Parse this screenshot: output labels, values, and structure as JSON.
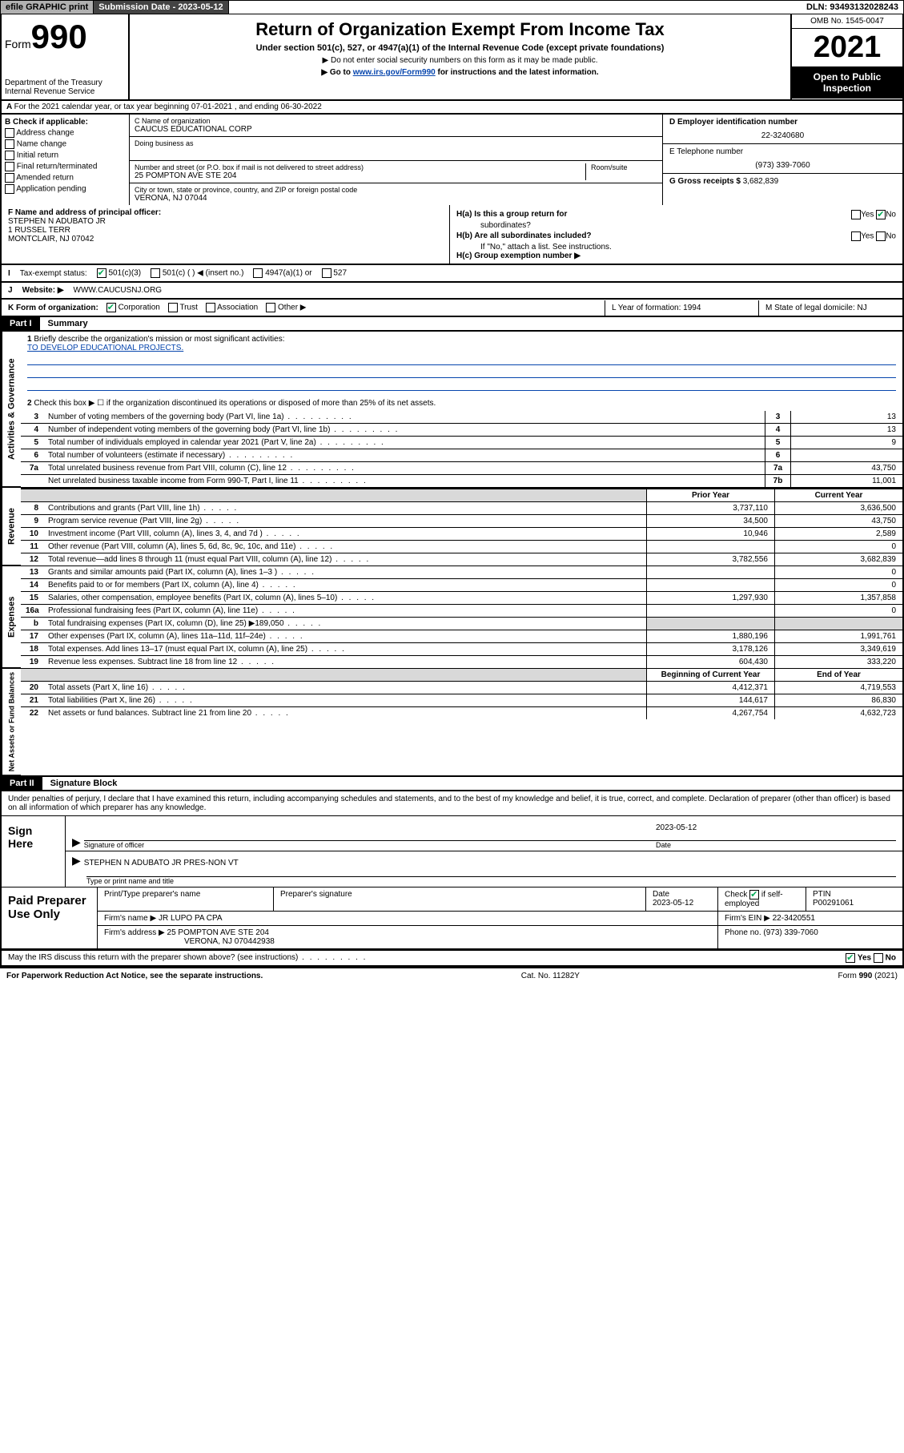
{
  "top": {
    "efile": "efile GRAPHIC print",
    "sub_lbl": "Submission Date - 2023-05-12",
    "dln": "DLN: 93493132028243"
  },
  "header": {
    "form": "Form",
    "num": "990",
    "dept": "Department of the Treasury",
    "irs": "Internal Revenue Service",
    "title": "Return of Organization Exempt From Income Tax",
    "sub": "Under section 501(c), 527, or 4947(a)(1) of the Internal Revenue Code (except private foundations)",
    "n1": "▶ Do not enter social security numbers on this form as it may be made public.",
    "n2_a": "▶ Go to ",
    "n2_link": "www.irs.gov/Form990",
    "n2_b": " for instructions and the latest information.",
    "omb": "OMB No. 1545-0047",
    "year": "2021",
    "open": "Open to Public Inspection"
  },
  "rowA": "For the 2021 calendar year, or tax year beginning 07-01-2021   , and ending 06-30-2022",
  "B": {
    "hdr": "B Check if applicable:",
    "o1": "Address change",
    "o2": "Name change",
    "o3": "Initial return",
    "o4": "Final return/terminated",
    "o5": "Amended return",
    "o6": "Application pending"
  },
  "C": {
    "name_lbl": "C Name of organization",
    "name": "CAUCUS EDUCATIONAL CORP",
    "dba_lbl": "Doing business as",
    "addr_lbl": "Number and street (or P.O. box if mail is not delivered to street address)",
    "room_lbl": "Room/suite",
    "addr": "25 POMPTON AVE STE 204",
    "city_lbl": "City or town, state or province, country, and ZIP or foreign postal code",
    "city": "VERONA, NJ  07044"
  },
  "D": {
    "ein_lbl": "D Employer identification number",
    "ein": "22-3240680",
    "tel_lbl": "E Telephone number",
    "tel": "(973) 339-7060",
    "gross_lbl": "G Gross receipts $ ",
    "gross": "3,682,839"
  },
  "F": {
    "lbl": "F  Name and address of principal officer:",
    "l1": "STEPHEN N ADUBATO JR",
    "l2": "1 RUSSEL TERR",
    "l3": "MONTCLAIR, NJ  07042"
  },
  "H": {
    "a": "H(a)  Is this a group return for",
    "a2": "subordinates?",
    "b": "H(b)  Are all subordinates included?",
    "note": "If \"No,\" attach a list. See instructions.",
    "c": "H(c)  Group exemption number ▶",
    "yes": "Yes",
    "no": "No"
  },
  "I": {
    "lbl": "Tax-exempt status:",
    "o1": "501(c)(3)",
    "o2": "501(c) (  ) ◀ (insert no.)",
    "o3": "4947(a)(1) or",
    "o4": "527"
  },
  "J": {
    "lbl": "Website: ▶",
    "val": "WWW.CAUCUSNJ.ORG"
  },
  "K": {
    "lbl": "K Form of organization:",
    "o1": "Corporation",
    "o2": "Trust",
    "o3": "Association",
    "o4": "Other ▶",
    "L": "L Year of formation: 1994",
    "M": "M State of legal domicile: NJ"
  },
  "part1": {
    "hdr": "Part I",
    "title": "Summary"
  },
  "summary": {
    "q1": "Briefly describe the organization's mission or most significant activities:",
    "mission": "TO DEVELOP EDUCATIONAL PROJECTS.",
    "q2": "Check this box ▶ ☐  if the organization discontinued its operations or disposed of more than 25% of its net assets.",
    "rows_gov": [
      {
        "n": "3",
        "lbl": "Number of voting members of the governing body (Part VI, line 1a)",
        "id": "3",
        "v": "13"
      },
      {
        "n": "4",
        "lbl": "Number of independent voting members of the governing body (Part VI, line 1b)",
        "id": "4",
        "v": "13"
      },
      {
        "n": "5",
        "lbl": "Total number of individuals employed in calendar year 2021 (Part V, line 2a)",
        "id": "5",
        "v": "9"
      },
      {
        "n": "6",
        "lbl": "Total number of volunteers (estimate if necessary)",
        "id": "6",
        "v": ""
      },
      {
        "n": "7a",
        "lbl": "Total unrelated business revenue from Part VIII, column (C), line 12",
        "id": "7a",
        "v": "43,750"
      },
      {
        "n": "",
        "lbl": "Net unrelated business taxable income from Form 990-T, Part I, line 11",
        "id": "7b",
        "v": "11,001"
      }
    ],
    "py_hdr": "Prior Year",
    "cy_hdr": "Current Year",
    "rows_rev": [
      {
        "n": "8",
        "lbl": "Contributions and grants (Part VIII, line 1h)",
        "py": "3,737,110",
        "cy": "3,636,500"
      },
      {
        "n": "9",
        "lbl": "Program service revenue (Part VIII, line 2g)",
        "py": "34,500",
        "cy": "43,750"
      },
      {
        "n": "10",
        "lbl": "Investment income (Part VIII, column (A), lines 3, 4, and 7d )",
        "py": "10,946",
        "cy": "2,589"
      },
      {
        "n": "11",
        "lbl": "Other revenue (Part VIII, column (A), lines 5, 6d, 8c, 9c, 10c, and 11e)",
        "py": "",
        "cy": "0"
      },
      {
        "n": "12",
        "lbl": "Total revenue—add lines 8 through 11 (must equal Part VIII, column (A), line 12)",
        "py": "3,782,556",
        "cy": "3,682,839"
      }
    ],
    "rows_exp": [
      {
        "n": "13",
        "lbl": "Grants and similar amounts paid (Part IX, column (A), lines 1–3 )",
        "py": "",
        "cy": "0"
      },
      {
        "n": "14",
        "lbl": "Benefits paid to or for members (Part IX, column (A), line 4)",
        "py": "",
        "cy": "0"
      },
      {
        "n": "15",
        "lbl": "Salaries, other compensation, employee benefits (Part IX, column (A), lines 5–10)",
        "py": "1,297,930",
        "cy": "1,357,858"
      },
      {
        "n": "16a",
        "lbl": "Professional fundraising fees (Part IX, column (A), line 11e)",
        "py": "",
        "cy": "0"
      },
      {
        "n": "b",
        "lbl": "Total fundraising expenses (Part IX, column (D), line 25) ▶189,050",
        "py": "shade",
        "cy": "shade"
      },
      {
        "n": "17",
        "lbl": "Other expenses (Part IX, column (A), lines 11a–11d, 11f–24e)",
        "py": "1,880,196",
        "cy": "1,991,761"
      },
      {
        "n": "18",
        "lbl": "Total expenses. Add lines 13–17 (must equal Part IX, column (A), line 25)",
        "py": "3,178,126",
        "cy": "3,349,619"
      },
      {
        "n": "19",
        "lbl": "Revenue less expenses. Subtract line 18 from line 12",
        "py": "604,430",
        "cy": "333,220"
      }
    ],
    "by_hdr": "Beginning of Current Year",
    "ey_hdr": "End of Year",
    "rows_net": [
      {
        "n": "20",
        "lbl": "Total assets (Part X, line 16)",
        "py": "4,412,371",
        "cy": "4,719,553"
      },
      {
        "n": "21",
        "lbl": "Total liabilities (Part X, line 26)",
        "py": "144,617",
        "cy": "86,830"
      },
      {
        "n": "22",
        "lbl": "Net assets or fund balances. Subtract line 21 from line 20",
        "py": "4,267,754",
        "cy": "4,632,723"
      }
    ]
  },
  "vtabs": {
    "gov": "Activities & Governance",
    "rev": "Revenue",
    "exp": "Expenses",
    "net": "Net Assets or Fund Balances"
  },
  "part2": {
    "hdr": "Part II",
    "title": "Signature Block"
  },
  "sig": {
    "dec": "Under penalties of perjury, I declare that I have examined this return, including accompanying schedules and statements, and to the best of my knowledge and belief, it is true, correct, and complete. Declaration of preparer (other than officer) is based on all information of which preparer has any knowledge.",
    "here": "Sign Here",
    "so_lbl": "Signature of officer",
    "date_lbl": "Date",
    "date": "2023-05-12",
    "name": "STEPHEN N ADUBATO JR  PRES-NON VT",
    "name_lbl": "Type or print name and title"
  },
  "prep": {
    "hdr": "Paid Preparer Use Only",
    "c1": "Print/Type preparer's name",
    "c2": "Preparer's signature",
    "c3_lbl": "Date",
    "c3": "2023-05-12",
    "c4_lbl": "Check",
    "c4_txt": "if self-employed",
    "c5_lbl": "PTIN",
    "c5": "P00291061",
    "firm_lbl": "Firm's name    ▶",
    "firm": "JR LUPO PA CPA",
    "ein_lbl": "Firm's EIN ▶",
    "ein": "22-3420551",
    "addr_lbl": "Firm's address ▶",
    "addr1": "25 POMPTON AVE STE 204",
    "addr2": "VERONA, NJ  070442938",
    "ph_lbl": "Phone no.",
    "ph": "(973) 339-7060"
  },
  "may": {
    "q": "May the IRS discuss this return with the preparer shown above? (see instructions)",
    "yes": "Yes",
    "no": "No"
  },
  "footer": {
    "l": "For Paperwork Reduction Act Notice, see the separate instructions.",
    "m": "Cat. No. 11282Y",
    "r": "Form 990 (2021)"
  }
}
